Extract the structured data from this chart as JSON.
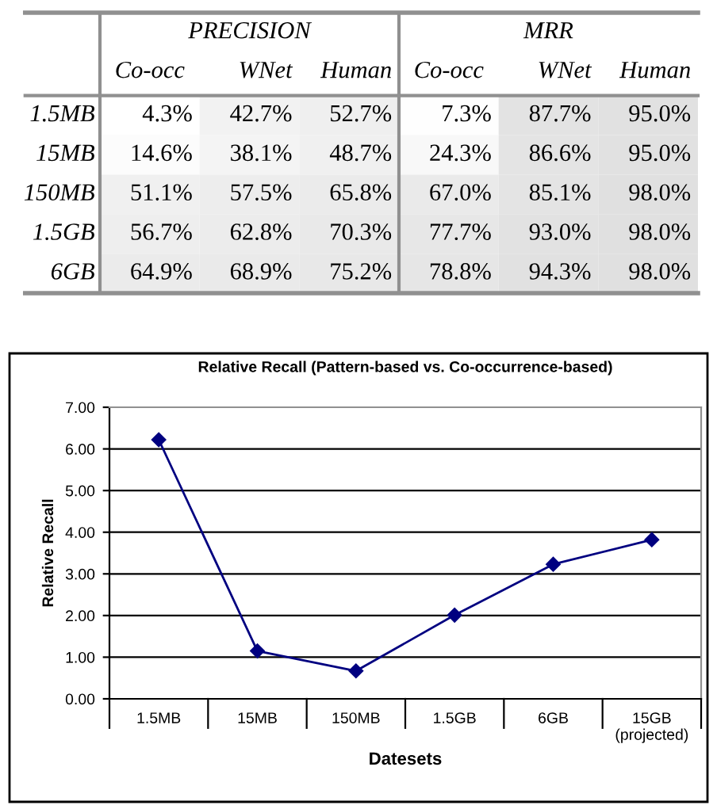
{
  "chart_data": [
    {
      "type": "heatmap",
      "categories": [
        "Co-occ",
        "WNet",
        "Human",
        "Co-occ",
        "WNet",
        "Human"
      ],
      "y_categories": [
        "1.5MB",
        "15MB",
        "150MB",
        "1.5GB",
        "6GB"
      ],
      "cells": [
        [
          4.3,
          42.7,
          52.7,
          7.3,
          87.7,
          95.0
        ],
        [
          14.6,
          38.1,
          48.7,
          24.3,
          86.6,
          95.0
        ],
        [
          51.1,
          57.5,
          65.8,
          67.0,
          85.1,
          98.0
        ],
        [
          56.7,
          62.8,
          70.3,
          77.7,
          93.0,
          98.0
        ],
        [
          64.9,
          68.9,
          75.2,
          78.8,
          94.3,
          98.0
        ]
      ],
      "cell_labels": [
        [
          "4.3%",
          "42.7%",
          "52.7%",
          "7.3%",
          "87.7%",
          "95.0%"
        ],
        [
          "14.6%",
          "38.1%",
          "48.7%",
          "24.3%",
          "86.6%",
          "95.0%"
        ],
        [
          "51.1%",
          "57.5%",
          "65.8%",
          "67.0%",
          "85.1%",
          "98.0%"
        ],
        [
          "56.7%",
          "62.8%",
          "70.3%",
          "77.7%",
          "93.0%",
          "98.0%"
        ],
        [
          "64.9%",
          "68.9%",
          "75.2%",
          "78.8%",
          "94.3%",
          "98.0%"
        ]
      ],
      "annotations": [
        "PRECISION",
        "MRR"
      ]
    },
    {
      "type": "line",
      "title": "Relative Recall (Pattern-based vs. Co-occurrence-based)",
      "xlabel": "Datesets",
      "ylabel": "Relative Recall",
      "categories": [
        "1.5MB",
        "15MB",
        "150MB",
        "1.5GB",
        "6GB",
        "15GB\n(projected)"
      ],
      "series": [
        {
          "color": "#000080",
          "values": [
            6.22,
            1.15,
            0.67,
            2.01,
            3.23,
            3.82
          ]
        }
      ],
      "ylim": [
        0,
        7
      ],
      "yticks": [
        {
          "value": 0,
          "label": "0.00"
        },
        {
          "value": 1,
          "label": "1.00"
        },
        {
          "value": 2,
          "label": "2.00"
        },
        {
          "value": 3,
          "label": "3.00"
        },
        {
          "value": 4,
          "label": "4.00"
        },
        {
          "value": 5,
          "label": "5.00"
        },
        {
          "value": 6,
          "label": "6.00"
        },
        {
          "value": 7,
          "label": "7.00"
        }
      ],
      "grid": "y",
      "marker": "diamond",
      "line_style": "solid"
    }
  ]
}
